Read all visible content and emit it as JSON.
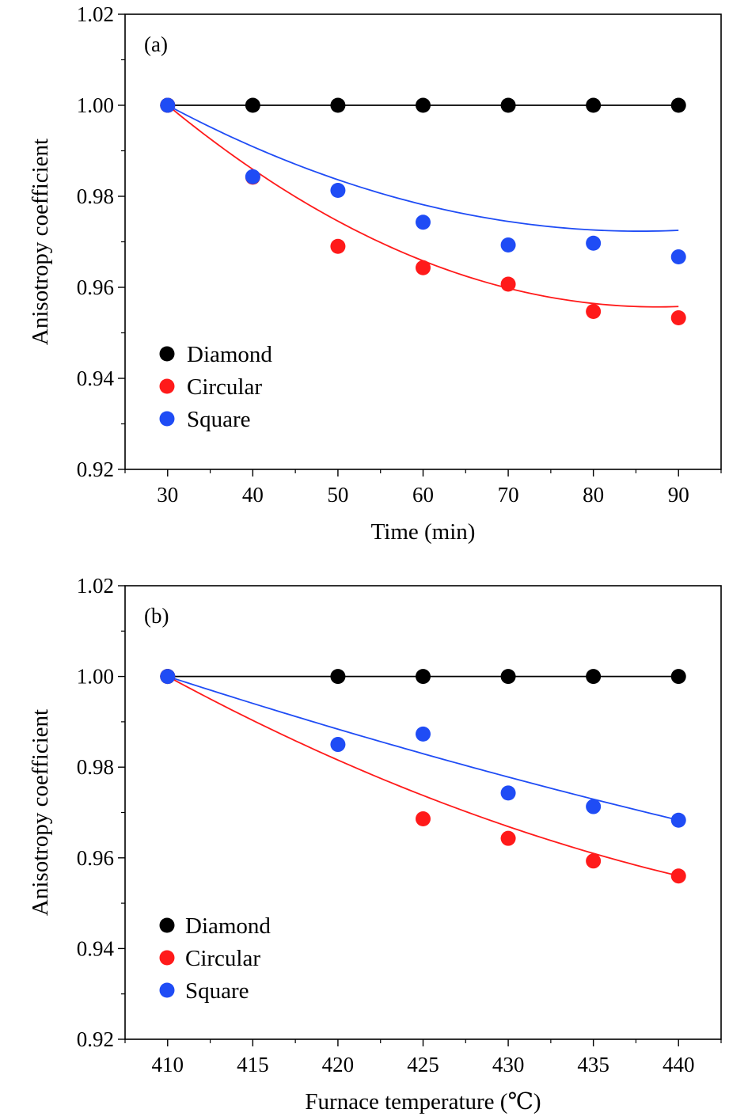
{
  "chart_data": [
    {
      "type": "scatter",
      "panel_label": "(a)",
      "xlabel": "Time (min)",
      "ylabel": "Anisotropy coefficient",
      "xlim": [
        25,
        95
      ],
      "ylim": [
        0.92,
        1.02
      ],
      "xticks": [
        30,
        40,
        50,
        60,
        70,
        80,
        90
      ],
      "xtick_labels": [
        "30",
        "40",
        "50",
        "60",
        "70",
        "80",
        "90"
      ],
      "yticks": [
        0.92,
        0.94,
        0.96,
        0.98,
        1.0,
        1.02
      ],
      "ytick_labels": [
        "0.92",
        "0.94",
        "0.96",
        "0.98",
        "1.00",
        "1.02"
      ],
      "legend_position": "bottom-left",
      "series": [
        {
          "name": "Diamond",
          "color": "#000000",
          "x": [
            30,
            40,
            50,
            60,
            70,
            80,
            90
          ],
          "y": [
            1.0,
            1.0,
            1.0,
            1.0,
            1.0,
            1.0,
            1.0
          ],
          "fit_coefficients": [
            1.0,
            0,
            0
          ]
        },
        {
          "name": "Circular",
          "color": "#ff1a1a",
          "x": [
            30,
            40,
            50,
            60,
            70,
            80,
            90
          ],
          "y": [
            1.0,
            0.9842,
            0.969,
            0.9643,
            0.9607,
            0.9547,
            0.9533
          ],
          "fit_coefficients": [
            1.0,
            -0.001541,
            1.34e-05
          ]
        },
        {
          "name": "Square",
          "color": "#1f4cf5",
          "x": [
            30,
            40,
            50,
            60,
            70,
            80,
            90
          ],
          "y": [
            1.0,
            0.9843,
            0.9813,
            0.9743,
            0.9693,
            0.9697,
            0.9667
          ],
          "fit_coefficients": [
            1.0,
            -0.000998,
            9e-06
          ]
        }
      ]
    },
    {
      "type": "scatter",
      "panel_label": "(b)",
      "xlabel": "Furnace temperature (℃)",
      "ylabel": "Anisotropy coefficient",
      "xlim": [
        407.5,
        442.5
      ],
      "ylim": [
        0.92,
        1.02
      ],
      "xticks": [
        410,
        415,
        420,
        425,
        430,
        435,
        440
      ],
      "xtick_labels": [
        "410",
        "415",
        "420",
        "425",
        "430",
        "435",
        "440"
      ],
      "yticks": [
        0.92,
        0.94,
        0.96,
        0.98,
        1.0,
        1.02
      ],
      "ytick_labels": [
        "0.92",
        "0.94",
        "0.96",
        "0.98",
        "1.00",
        "1.02"
      ],
      "legend_position": "bottom-left",
      "series": [
        {
          "name": "Diamond",
          "color": "#000000",
          "x": [
            410,
            420,
            425,
            430,
            435,
            440
          ],
          "y": [
            1.0,
            1.0,
            1.0,
            1.0,
            1.0,
            1.0
          ],
          "fit_coefficients": [
            1.0,
            0,
            0
          ]
        },
        {
          "name": "Circular",
          "color": "#ff1a1a",
          "x": [
            410,
            425,
            430,
            435,
            440
          ],
          "y": [
            1.0,
            0.9686,
            0.9643,
            0.9593,
            0.956
          ],
          "fit_coefficients": [
            1.0,
            -0.002033,
            1.89e-05
          ]
        },
        {
          "name": "Square",
          "color": "#1f4cf5",
          "x": [
            410,
            420,
            425,
            430,
            435,
            440
          ],
          "y": [
            1.0,
            0.985,
            0.9873,
            0.9743,
            0.9713,
            0.9683
          ],
          "fit_coefficients": [
            1.0,
            -0.001215,
            5.3e-06
          ]
        }
      ]
    }
  ]
}
